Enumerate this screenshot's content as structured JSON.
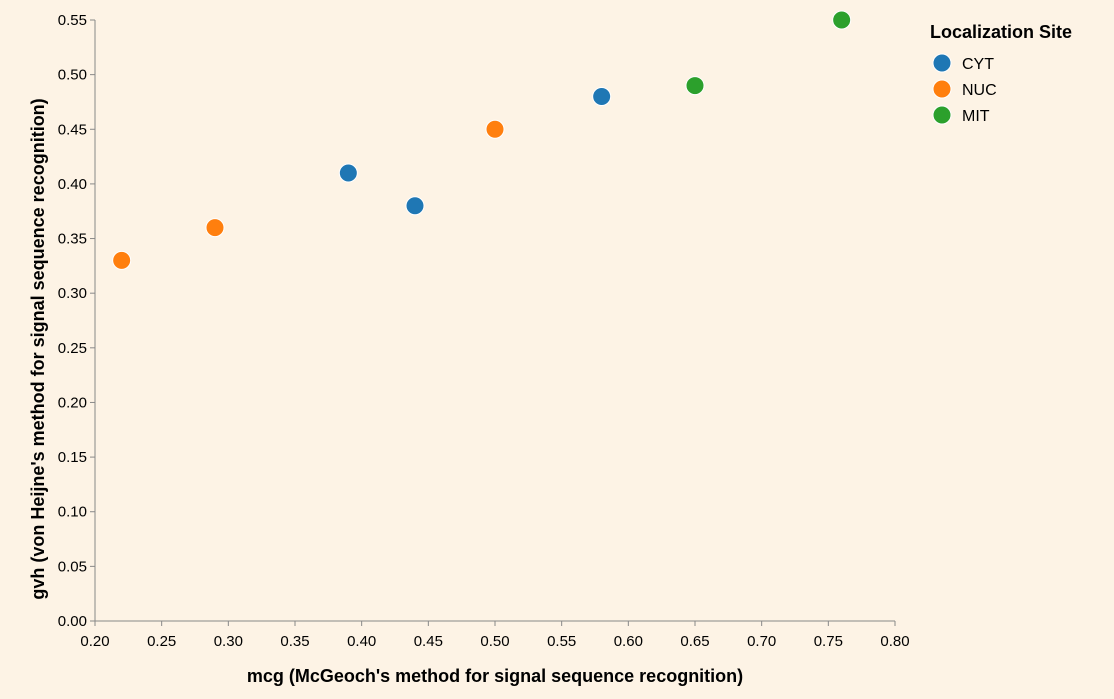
{
  "chart_data": {
    "type": "scatter",
    "title": "",
    "xlabel": "mcg (McGeoch's method for signal sequence recognition)",
    "ylabel": "gvh (von Heijne's method for signal sequence recognition)",
    "xlim": [
      0.2,
      0.8
    ],
    "ylim": [
      0.0,
      0.55
    ],
    "x_ticks": [
      "0.20",
      "0.25",
      "0.30",
      "0.35",
      "0.40",
      "0.45",
      "0.50",
      "0.55",
      "0.60",
      "0.65",
      "0.70",
      "0.75",
      "0.80"
    ],
    "y_ticks": [
      "0.00",
      "0.05",
      "0.10",
      "0.15",
      "0.20",
      "0.25",
      "0.30",
      "0.35",
      "0.40",
      "0.45",
      "0.50",
      "0.55"
    ],
    "grid": false,
    "legend": {
      "title": "Localization Site",
      "placement": "top-right"
    },
    "series": [
      {
        "name": "CYT",
        "color": "#1f77b4",
        "points": [
          {
            "x": 0.39,
            "y": 0.41
          },
          {
            "x": 0.44,
            "y": 0.38
          },
          {
            "x": 0.58,
            "y": 0.48
          }
        ]
      },
      {
        "name": "NUC",
        "color": "#ff7f0e",
        "points": [
          {
            "x": 0.22,
            "y": 0.33
          },
          {
            "x": 0.29,
            "y": 0.36
          },
          {
            "x": 0.5,
            "y": 0.45
          }
        ]
      },
      {
        "name": "MIT",
        "color": "#2ca02c",
        "points": [
          {
            "x": 0.65,
            "y": 0.49
          },
          {
            "x": 0.76,
            "y": 0.55
          }
        ]
      }
    ]
  }
}
